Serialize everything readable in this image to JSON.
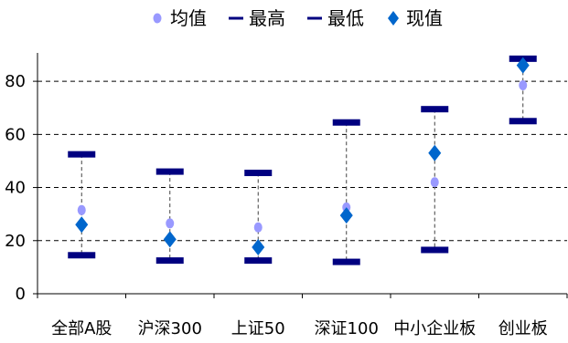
{
  "chart_data": {
    "type": "scatter",
    "categories": [
      "全部A股",
      "沪深300",
      "上证50",
      "深证100",
      "中小企业板",
      "创业板"
    ],
    "series": [
      {
        "name": "均值",
        "values": [
          31.5,
          26.5,
          25.0,
          32.5,
          42.0,
          78.5
        ],
        "color": "#9999ff",
        "marker": "circle"
      },
      {
        "name": "最高",
        "values": [
          52.5,
          46.0,
          45.5,
          64.5,
          69.5,
          88.5
        ],
        "color": "#000080",
        "marker": "bar"
      },
      {
        "name": "最低",
        "values": [
          14.5,
          12.5,
          12.5,
          12.0,
          16.5,
          65.0
        ],
        "color": "#000080",
        "marker": "bar"
      },
      {
        "name": "现值",
        "values": [
          26.0,
          20.5,
          17.5,
          29.5,
          53.0,
          86.0
        ],
        "color": "#0066cc",
        "marker": "diamond"
      }
    ],
    "yticks": [
      0,
      20,
      40,
      60,
      80
    ],
    "ylim": [
      0,
      90
    ],
    "grid": "horizontal-dashed",
    "legend": "top-center",
    "range_line": "dashed-vertical",
    "colors": {
      "range_line": "#404040",
      "grid": "#000000",
      "axis": "#000000"
    }
  }
}
